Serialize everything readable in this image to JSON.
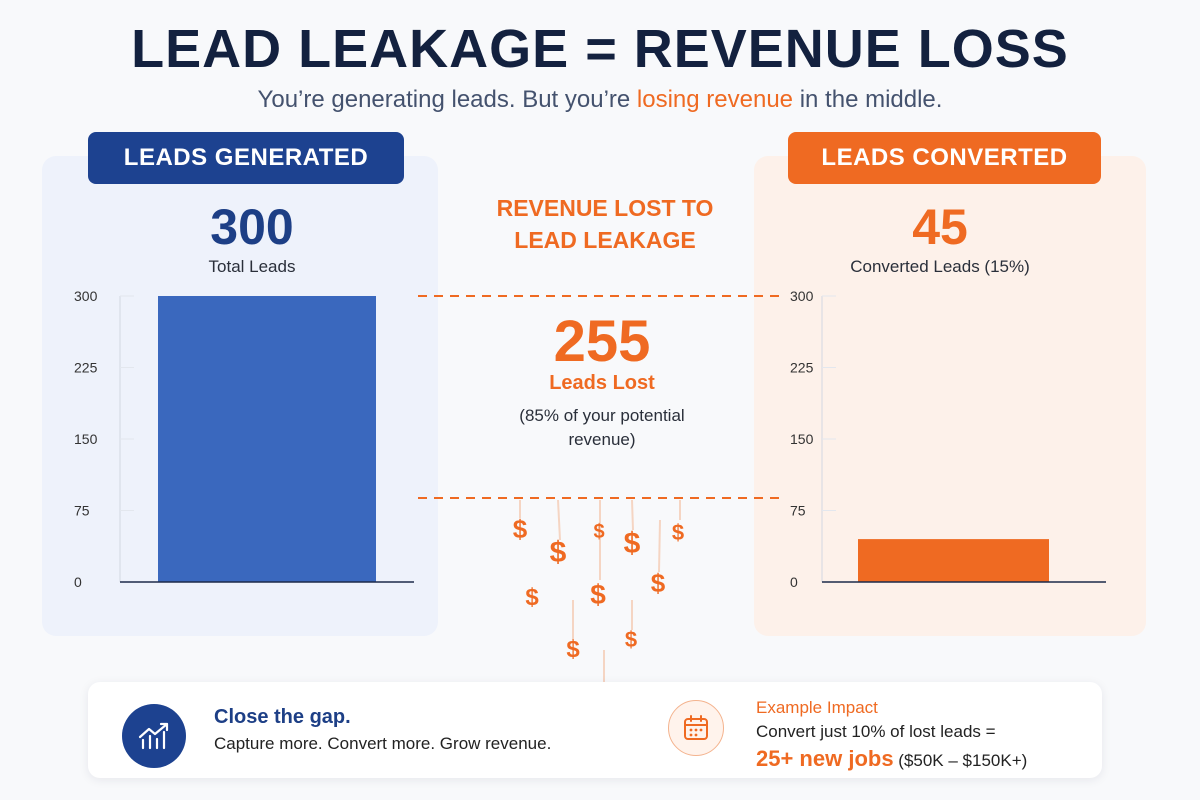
{
  "header": {
    "title": "LEAD LEAKAGE = REVENUE LOSS",
    "subtitle_pre": "You’re generating leads. But you’re ",
    "subtitle_highlight": "losing revenue",
    "subtitle_post": " in the middle."
  },
  "left_panel": {
    "badge": "LEADS GENERATED",
    "big_number": "300",
    "label": "Total Leads"
  },
  "right_panel": {
    "badge": "LEADS CONVERTED",
    "big_number": "45",
    "label": "Converted Leads (15%)"
  },
  "middle": {
    "heading_line1": "REVENUE LOST TO",
    "heading_line2": "LEAD LEAKAGE",
    "number": "255",
    "label": "Leads Lost",
    "note_line1": "(85% of your potential",
    "note_line2": "revenue)",
    "dollar_symbol": "$"
  },
  "bottom": {
    "left_title": "Close the gap.",
    "left_text": "Capture more. Convert more. Grow revenue.",
    "right_title": "Example Impact",
    "right_text": "Convert just 10% of lost leads =",
    "right_highlight": "25+ new jobs",
    "right_range": " ($50K – $150K+)"
  },
  "colors": {
    "navy": "#1d4290",
    "blue_bar": "#3a68be",
    "orange": "#ef6a22"
  },
  "chart_data": [
    {
      "type": "bar",
      "title": "LEADS GENERATED",
      "categories": [
        "Total Leads"
      ],
      "values": [
        300
      ],
      "ylim": [
        0,
        300
      ],
      "yticks": [
        0,
        75,
        150,
        225,
        300
      ],
      "ytick_labels": [
        "0",
        "75",
        "150",
        "225",
        "300"
      ],
      "xlabel": "",
      "ylabel": ""
    },
    {
      "type": "bar",
      "title": "LEADS CONVERTED",
      "categories": [
        "Converted Leads"
      ],
      "values": [
        45
      ],
      "ylim": [
        0,
        300
      ],
      "yticks": [
        0,
        75,
        150,
        225,
        300
      ],
      "ytick_labels": [
        "0",
        "75",
        "150",
        "225",
        "300"
      ],
      "xlabel": "",
      "ylabel": ""
    }
  ]
}
